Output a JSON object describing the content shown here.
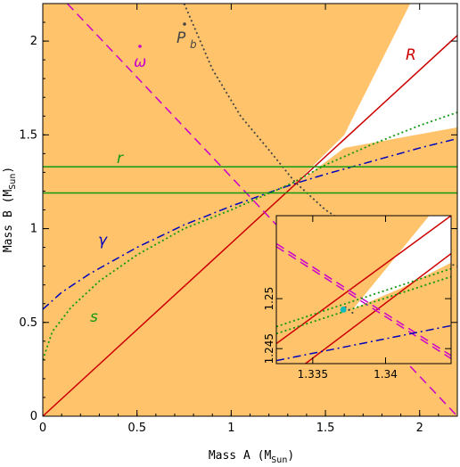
{
  "chart_data": [
    {
      "type": "line",
      "panel": "main",
      "xlabel_main": "Mass A (M",
      "xlabel_sub": "Sun",
      "xlabel_close": ")",
      "ylabel_main": "Mass B (M",
      "ylabel_sub": "Sun",
      "ylabel_close": ")",
      "xlim": [
        0,
        2.2
      ],
      "ylim": [
        0,
        2.2
      ],
      "xticks": [
        0,
        0.5,
        1,
        1.5,
        2
      ],
      "xtick_labels": [
        "0",
        "0.5",
        "1",
        "1.5",
        "2"
      ],
      "yticks": [
        0,
        0.5,
        1,
        1.5,
        2
      ],
      "ytick_labels": [
        "0",
        "0.5",
        "1",
        "1.5",
        "2"
      ],
      "allowed_region_color": "#ffc46b",
      "series": [
        {
          "name": "R",
          "color": "#cc0000",
          "style": "solid",
          "points": [
            [
              0,
              0
            ],
            [
              2.2,
              2.03
            ]
          ]
        },
        {
          "name": "ω̇",
          "color": "#cc00cc",
          "style": "dashed",
          "points": [
            [
              0.13,
              2.2
            ],
            [
              2.2,
              0.0
            ]
          ]
        },
        {
          "name": "Ṗb",
          "color": "#444444",
          "style": "dotted",
          "points": [
            [
              0.75,
              2.2
            ],
            [
              0.9,
              1.85
            ],
            [
              1.05,
              1.6
            ],
            [
              1.2,
              1.42
            ],
            [
              1.337,
              1.25
            ],
            [
              1.5,
              1.1
            ],
            [
              1.7,
              0.97
            ],
            [
              2.0,
              0.86
            ],
            [
              2.2,
              0.8
            ]
          ]
        },
        {
          "name": "γ",
          "color": "#0000bb",
          "style": "dashdot",
          "points": [
            [
              0,
              0.57
            ],
            [
              0.1,
              0.66
            ],
            [
              0.25,
              0.76
            ],
            [
              0.5,
              0.9
            ],
            [
              0.75,
              1.02
            ],
            [
              1.0,
              1.12
            ],
            [
              1.25,
              1.21
            ],
            [
              1.337,
              1.24
            ],
            [
              1.5,
              1.29
            ],
            [
              1.75,
              1.36
            ],
            [
              2.0,
              1.43
            ],
            [
              2.2,
              1.48
            ]
          ]
        },
        {
          "name": "s",
          "color": "#119911",
          "style": "dotted",
          "points": [
            [
              0,
              0.3
            ],
            [
              0.05,
              0.45
            ],
            [
              0.15,
              0.58
            ],
            [
              0.3,
              0.72
            ],
            [
              0.5,
              0.86
            ],
            [
              0.75,
              1.0
            ],
            [
              1.0,
              1.1
            ],
            [
              1.25,
              1.21
            ],
            [
              1.337,
              1.25
            ],
            [
              1.5,
              1.34
            ],
            [
              1.75,
              1.45
            ],
            [
              2.0,
              1.55
            ],
            [
              2.2,
              1.62
            ]
          ]
        },
        {
          "name": "r",
          "color": "#119911",
          "style": "solid",
          "points": [
            [
              0,
              1.33
            ],
            [
              2.2,
              1.33
            ]
          ]
        },
        {
          "name": "r2",
          "color": "#119911",
          "style": "solid",
          "points": [
            [
              0,
              1.19
            ],
            [
              2.2,
              1.19
            ]
          ]
        }
      ],
      "labels": {
        "R": "R",
        "omega": "ω",
        "pb": "P",
        "pb_sub": "b",
        "gamma": "γ",
        "s": "s",
        "r": "r"
      }
    },
    {
      "type": "line",
      "panel": "inset",
      "xlim": [
        1.3325,
        1.3445
      ],
      "ylim": [
        1.2435,
        1.2583
      ],
      "xticks": [
        1.335,
        1.34
      ],
      "xtick_labels": [
        "1.335",
        "1.34"
      ],
      "yticks": [
        1.245,
        1.25
      ],
      "ytick_labels": [
        "1.245",
        "1.25"
      ],
      "series": [
        {
          "name": "R-upper",
          "color": "#cc0000",
          "style": "solid",
          "points": [
            [
              1.3325,
              1.2455
            ],
            [
              1.3445,
              1.2583
            ]
          ]
        },
        {
          "name": "R-lower",
          "color": "#cc0000",
          "style": "solid",
          "points": [
            [
              1.3345,
              1.2435
            ],
            [
              1.3445,
              1.2545
            ]
          ]
        },
        {
          "name": "ω̇-a",
          "color": "#cc00cc",
          "style": "dashed",
          "points": [
            [
              1.3325,
              1.2555
            ],
            [
              1.3445,
              1.2443
            ]
          ]
        },
        {
          "name": "ω̇-b",
          "color": "#cc00cc",
          "style": "dashed",
          "points": [
            [
              1.3325,
              1.2552
            ],
            [
              1.3445,
              1.244
            ]
          ]
        },
        {
          "name": "γ",
          "color": "#0000bb",
          "style": "dashdot",
          "points": [
            [
              1.3325,
              1.2438
            ],
            [
              1.3445,
              1.2473
            ]
          ]
        },
        {
          "name": "s-a",
          "color": "#119911",
          "style": "dotted",
          "points": [
            [
              1.3325,
              1.2472
            ],
            [
              1.3445,
              1.253
            ]
          ]
        },
        {
          "name": "s-b",
          "color": "#119911",
          "style": "dotted",
          "points": [
            [
              1.3325,
              1.2465
            ],
            [
              1.3445,
              1.2522
            ]
          ]
        },
        {
          "name": "Ṗb",
          "color": "#444444",
          "style": "dotted",
          "points": [
            [
              1.3372,
              1.2492
            ],
            [
              1.3378,
              1.2485
            ]
          ]
        }
      ],
      "best_fit": {
        "color": "#11bbbb",
        "x": 1.3371,
        "y": 1.2489
      }
    }
  ]
}
